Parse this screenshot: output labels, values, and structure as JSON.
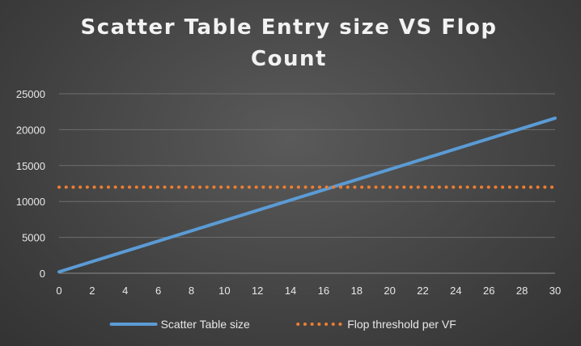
{
  "chart_data": {
    "type": "line",
    "title_lines": [
      "Scatter Table Entry size VS Flop",
      "Count"
    ],
    "xlabel": "",
    "ylabel": "",
    "xlim": [
      0,
      30
    ],
    "ylim": [
      0,
      25000
    ],
    "x_ticks": [
      "0",
      "2",
      "4",
      "6",
      "8",
      "10",
      "12",
      "14",
      "16",
      "18",
      "20",
      "22",
      "24",
      "26",
      "28",
      "30"
    ],
    "y_ticks": [
      "0",
      "5000",
      "10000",
      "15000",
      "20000",
      "25000"
    ],
    "grid": true,
    "legend_position": "bottom",
    "series": [
      {
        "name": "Scatter Table size",
        "style": "solid",
        "color": "#5b9bd5",
        "x": [
          0,
          30
        ],
        "y": [
          200,
          21600
        ]
      },
      {
        "name": "Flop threshold per VF",
        "style": "dotted",
        "color": "#ed7d31",
        "x": [
          0,
          30
        ],
        "y": [
          12000,
          12000
        ]
      }
    ]
  }
}
